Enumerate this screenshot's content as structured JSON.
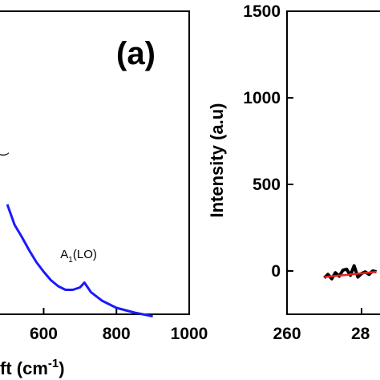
{
  "chart_data": [
    {
      "type": "line",
      "panel_label": "(a)",
      "xlabel_visible": "ft (cm",
      "xlabel_superscript": "-1",
      "xlabel_close": ")",
      "xlim": [
        480,
        1000
      ],
      "x_ticks": [
        600,
        800,
        1000
      ],
      "x_tick_labels": [
        "600",
        "800",
        "1000"
      ],
      "annotations": [
        {
          "text": "A",
          "sub": "1",
          "rest": "(LO)",
          "x": 712
        },
        {
          "text": "(",
          "x": 490
        }
      ],
      "color": "#1a1aff",
      "series": [
        {
          "x": [
            500,
            520,
            540,
            560,
            580,
            600,
            620,
            640,
            660,
            680,
            700,
            712,
            730,
            760,
            800,
            850,
            900
          ],
          "y": [
            1.0,
            0.83,
            0.73,
            0.62,
            0.52,
            0.44,
            0.37,
            0.32,
            0.29,
            0.29,
            0.31,
            0.35,
            0.27,
            0.2,
            0.14,
            0.1,
            0.07
          ]
        }
      ]
    },
    {
      "type": "line",
      "ylabel": "Intensity (a.u)",
      "ylim": [
        -250,
        1500
      ],
      "y_ticks": [
        0,
        500,
        1000,
        1500
      ],
      "y_tick_labels": [
        "0",
        "500",
        "1000",
        "1500"
      ],
      "xlim": [
        260,
        290
      ],
      "x_tick_labels_visible": [
        "260",
        "28"
      ],
      "series": [
        {
          "color": "#000000",
          "x": [
            270,
            271,
            272,
            273,
            274,
            275,
            276,
            277,
            278,
            279,
            280,
            281,
            282,
            283,
            284
          ],
          "y": [
            -40,
            -20,
            -45,
            -10,
            -30,
            5,
            10,
            -25,
            30,
            -35,
            -15,
            -5,
            -20,
            0,
            -5
          ]
        },
        {
          "color": "#e8231f",
          "x": [
            270,
            284
          ],
          "y": [
            -35,
            -5
          ]
        }
      ]
    }
  ]
}
